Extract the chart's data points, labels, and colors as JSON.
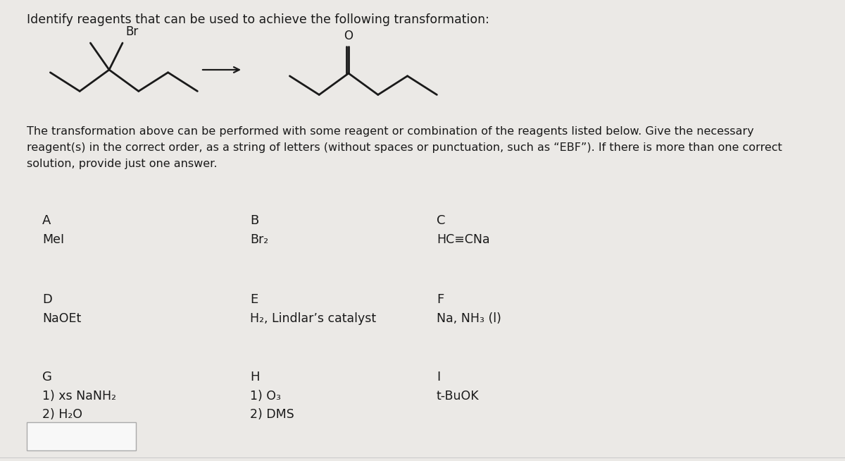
{
  "title": "Identify reagents that can be used to achieve the following transformation:",
  "description": "The transformation above can be performed with some reagent or combination of the reagents listed below. Give the necessary\nreagent(s) in the correct order, as a string of letters (without spaces or punctuation, such as “EBF”). If there is more than one correct\nsolution, provide just one answer.",
  "reagents": [
    {
      "label": "A",
      "text": "MeI",
      "col": 0,
      "row": 0
    },
    {
      "label": "B",
      "text": "Br₂",
      "col": 1,
      "row": 0
    },
    {
      "label": "C",
      "text": "HC≡CNa",
      "col": 2,
      "row": 0
    },
    {
      "label": "D",
      "text": "NaOEt",
      "col": 0,
      "row": 1
    },
    {
      "label": "E",
      "text": "H₂, Lindlar’s catalyst",
      "col": 1,
      "row": 1
    },
    {
      "label": "F",
      "text": "Na, NH₃ (l)",
      "col": 2,
      "row": 1
    },
    {
      "label": "G",
      "text": "1) xs NaNH₂\n2) H₂O",
      "col": 0,
      "row": 2
    },
    {
      "label": "H",
      "text": "1) O₃\n2) DMS",
      "col": 1,
      "row": 2
    },
    {
      "label": "I",
      "text": "t-BuOK",
      "col": 2,
      "row": 2
    }
  ],
  "background_color": "#ebe9e6",
  "text_color": "#1a1a1a",
  "font_size_title": 12.5,
  "font_size_label": 13,
  "font_size_reagent": 12.5,
  "font_size_description": 11.5,
  "mol_lw": 2.0,
  "mol_color": "#1a1a1a"
}
